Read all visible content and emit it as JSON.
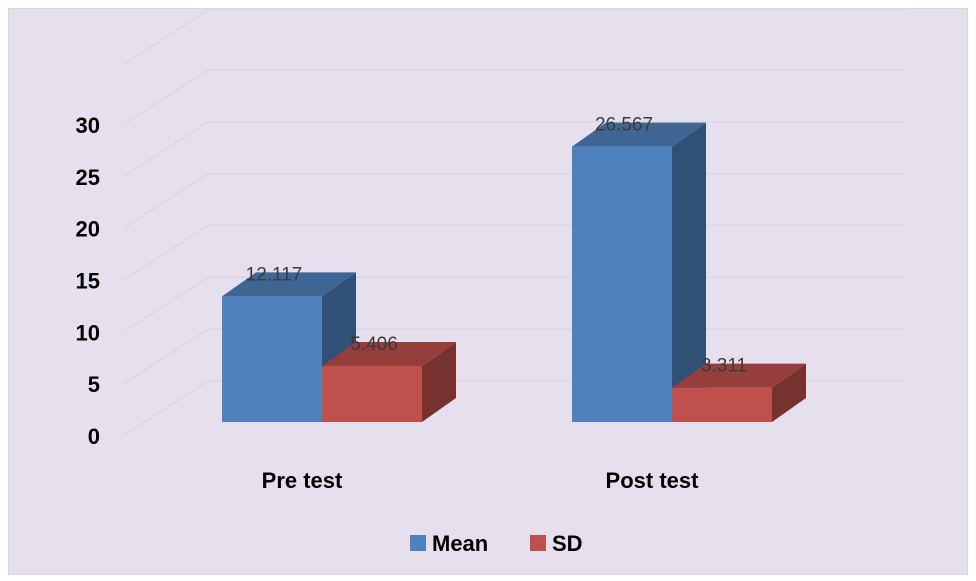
{
  "chart_data": {
    "type": "bar",
    "categories": [
      "Pre test",
      "Post test"
    ],
    "series": [
      {
        "name": "Mean",
        "values": [
          12.117,
          26.567
        ],
        "color": "#4f81bd"
      },
      {
        "name": "SD",
        "values": [
          5.406,
          3.311
        ],
        "color": "#c0504d"
      }
    ],
    "data_labels": [
      [
        "12.117",
        "26.567"
      ],
      [
        "5.406",
        "3.311"
      ]
    ],
    "yticks": [
      0,
      5,
      10,
      15,
      20,
      25,
      30
    ],
    "ylim": [
      0,
      30
    ],
    "grid": true,
    "legend_position": "bottom",
    "three_d": true
  }
}
